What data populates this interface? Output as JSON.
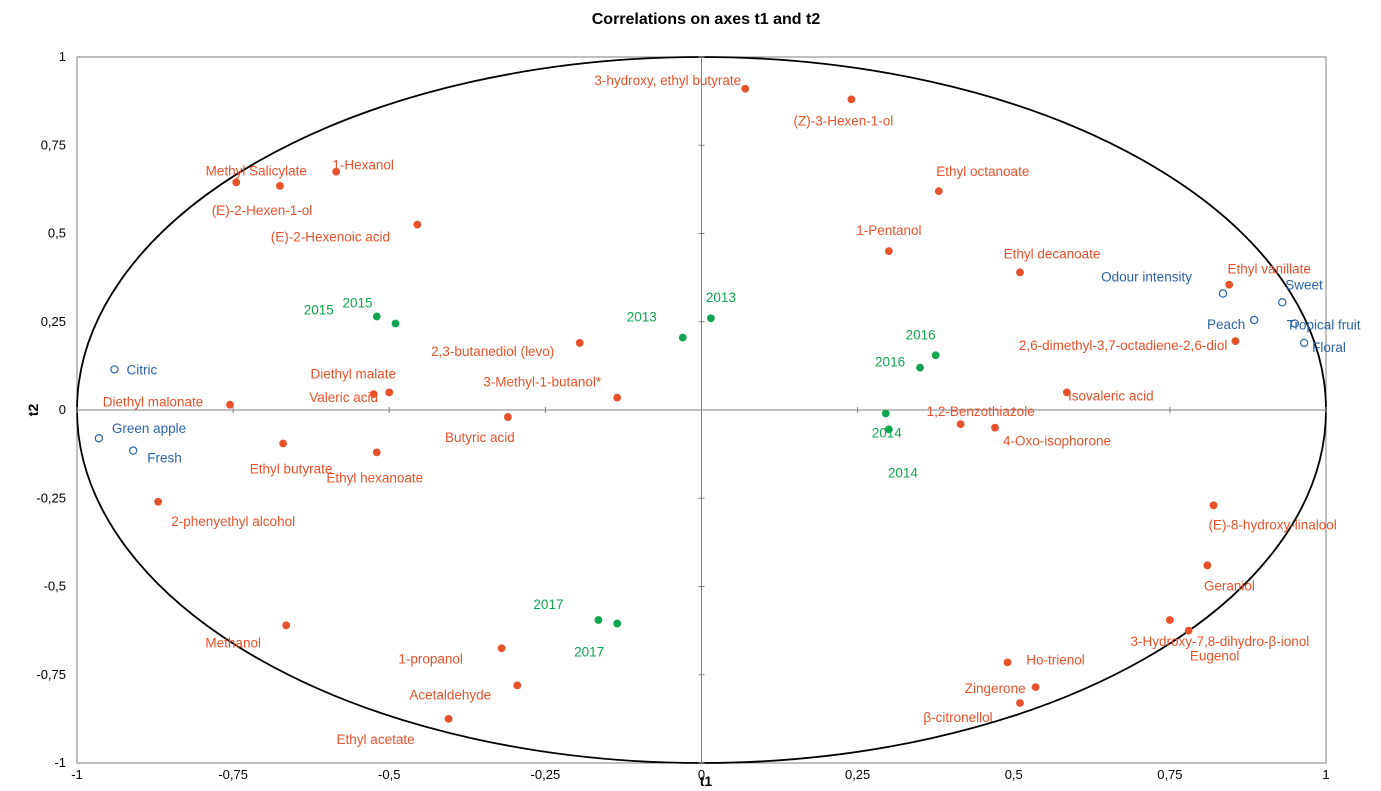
{
  "chart_data": {
    "type": "scatter",
    "title": "Correlations on axes t1 and t2",
    "xlabel": "t1",
    "ylabel": "t2",
    "xlim": [
      -1,
      1
    ],
    "ylim": [
      -1,
      1
    ],
    "x_ticks": [
      "-1",
      "-0,75",
      "-0,5",
      "-0,25",
      "0",
      "0,25",
      "0,5",
      "0,75",
      "1"
    ],
    "y_ticks": [
      "1",
      "0,75",
      "0,5",
      "0,25",
      "0",
      "-0,25",
      "-0,5",
      "-0,75",
      "-1"
    ],
    "correlation_circle": true,
    "grid": false,
    "colors": {
      "volatile_compounds": "#e8522b",
      "years": "#10a550",
      "sensory_attributes": "#2a64a9"
    },
    "series": [
      {
        "marker": "filled-circle",
        "color": "#e8522b",
        "points": [
          {
            "label": "3-hydroxy, ethyl butyrate",
            "x": 0.07,
            "y": 0.91
          },
          {
            "label": "(Z)-3-Hexen-1-ol",
            "x": 0.24,
            "y": 0.88
          },
          {
            "label": "Methyl Salicylate",
            "x": -0.745,
            "y": 0.645
          },
          {
            "label": "1-Hexanol",
            "x": -0.585,
            "y": 0.675
          },
          {
            "label": "(E)-2-Hexen-1-ol",
            "x": -0.675,
            "y": 0.635
          },
          {
            "label": "(E)-2-Hexenoic acid",
            "x": -0.455,
            "y": 0.525
          },
          {
            "label": "Ethyl octanoate",
            "x": 0.38,
            "y": 0.62
          },
          {
            "label": "1-Pentanol",
            "x": 0.3,
            "y": 0.45
          },
          {
            "label": "Ethyl decanoate",
            "x": 0.51,
            "y": 0.39
          },
          {
            "label": "Ethyl vanillate",
            "x": 0.845,
            "y": 0.355
          },
          {
            "label": "2,6-dimethyl-3,7-octadiene-2,6-diol",
            "x": 0.855,
            "y": 0.195
          },
          {
            "label": "2,3-butanediol (levo)",
            "x": -0.195,
            "y": 0.19
          },
          {
            "label": "Diethyl malate",
            "x": -0.5,
            "y": 0.05
          },
          {
            "label": "Valeric acid",
            "x": -0.525,
            "y": 0.045
          },
          {
            "label": "3-Methyl-1-butanol*",
            "x": -0.135,
            "y": 0.035
          },
          {
            "label": "Diethyl malonate",
            "x": -0.755,
            "y": 0.015
          },
          {
            "label": "Isovaleric acid",
            "x": 0.585,
            "y": 0.05
          },
          {
            "label": "1,2-Benzothiazole",
            "x": 0.415,
            "y": -0.04
          },
          {
            "label": "4-Oxo-isophorone",
            "x": 0.47,
            "y": -0.05
          },
          {
            "label": "Butyric acid",
            "x": -0.31,
            "y": -0.02
          },
          {
            "label": "Ethyl butyrate",
            "x": -0.67,
            "y": -0.095
          },
          {
            "label": "Ethyl hexanoate",
            "x": -0.52,
            "y": -0.12
          },
          {
            "label": "2-phenyethyl alcohol",
            "x": -0.87,
            "y": -0.26
          },
          {
            "label": "(E)-8-hydroxy-linalool",
            "x": 0.82,
            "y": -0.27
          },
          {
            "label": "Geraniol",
            "x": 0.81,
            "y": -0.44
          },
          {
            "label": "3-Hydroxy-7,8-dihydro-β-ionol",
            "x": 0.75,
            "y": -0.595
          },
          {
            "label": "Eugenol",
            "x": 0.78,
            "y": -0.625
          },
          {
            "label": "Methanol",
            "x": -0.665,
            "y": -0.61
          },
          {
            "label": "1-propanol",
            "x": -0.32,
            "y": -0.675
          },
          {
            "label": "Acetaldehyde",
            "x": -0.295,
            "y": -0.78
          },
          {
            "label": "Ethyl acetate",
            "x": -0.405,
            "y": -0.875
          },
          {
            "label": "Ho-trienol",
            "x": 0.49,
            "y": -0.715
          },
          {
            "label": "Zingerone",
            "x": 0.535,
            "y": -0.785
          },
          {
            "label": "β-citronellol",
            "x": 0.51,
            "y": -0.83
          }
        ]
      },
      {
        "marker": "filled-circle",
        "color": "#10a550",
        "points": [
          {
            "label": "2015",
            "x": -0.52,
            "y": 0.265
          },
          {
            "label": "2015",
            "x": -0.49,
            "y": 0.245
          },
          {
            "label": "2013",
            "x": -0.03,
            "y": 0.205
          },
          {
            "label": "2013",
            "x": 0.015,
            "y": 0.26
          },
          {
            "label": "2016",
            "x": 0.375,
            "y": 0.155
          },
          {
            "label": "2016",
            "x": 0.35,
            "y": 0.12
          },
          {
            "label": "2014",
            "x": 0.295,
            "y": -0.01
          },
          {
            "label": "2014",
            "x": 0.3,
            "y": -0.055
          },
          {
            "label": "2017",
            "x": -0.165,
            "y": -0.595
          },
          {
            "label": "2017",
            "x": -0.135,
            "y": -0.605
          }
        ]
      },
      {
        "marker": "open-circle",
        "color": "#2a64a9",
        "points": [
          {
            "label": "Citric",
            "x": -0.94,
            "y": 0.115
          },
          {
            "label": "Green apple",
            "x": -0.965,
            "y": -0.08
          },
          {
            "label": "Fresh",
            "x": -0.91,
            "y": -0.115
          },
          {
            "label": "Odour intensity",
            "x": 0.835,
            "y": 0.33
          },
          {
            "label": "Sweet",
            "x": 0.93,
            "y": 0.305
          },
          {
            "label": "Peach",
            "x": 0.885,
            "y": 0.255
          },
          {
            "label": "Tropical fruit",
            "x": 0.95,
            "y": 0.245
          },
          {
            "label": "Floral",
            "x": 0.965,
            "y": 0.19
          }
        ]
      }
    ]
  }
}
